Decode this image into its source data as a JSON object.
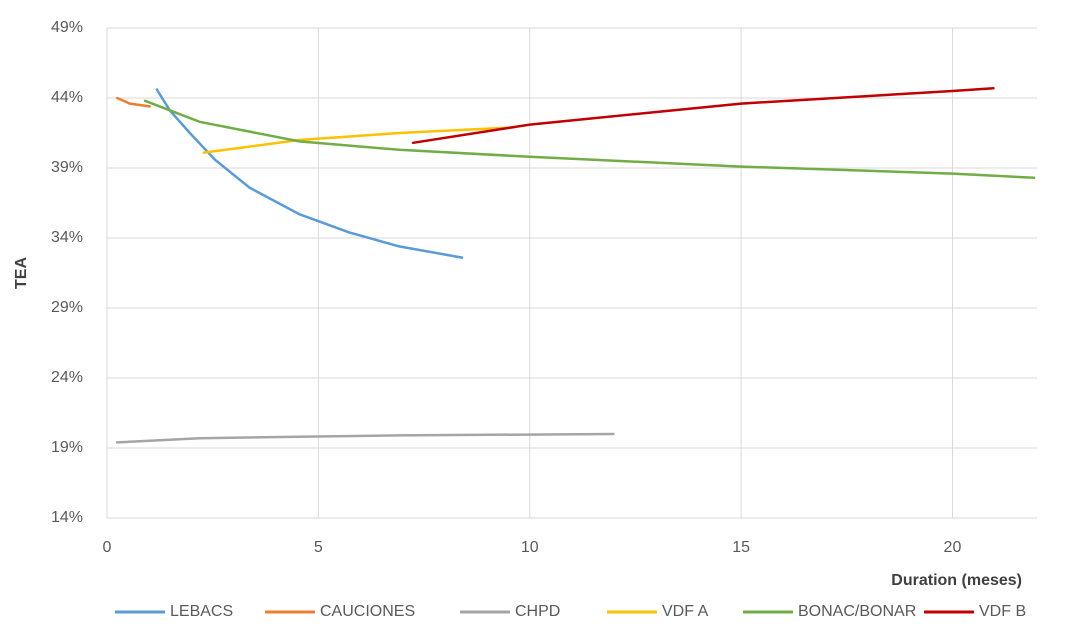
{
  "chart_data": {
    "type": "line",
    "x_label": "Duration (meses)",
    "y_label": "TEA",
    "xlim": [
      0,
      22
    ],
    "xticks": [
      0,
      5,
      10,
      15,
      20
    ],
    "ylim": [
      14,
      49
    ],
    "yticks": [
      {
        "value": 14,
        "label": "14%"
      },
      {
        "value": 19,
        "label": "19%"
      },
      {
        "value": 24,
        "label": "24%"
      },
      {
        "value": 29,
        "label": "29%"
      },
      {
        "value": 34,
        "label": "34%"
      },
      {
        "value": 39,
        "label": "39%"
      },
      {
        "value": 44,
        "label": "44%"
      },
      {
        "value": 49,
        "label": "49%"
      }
    ],
    "grid": true,
    "legend": "bottom",
    "series": [
      {
        "name": "LEBACS",
        "color": "#5b9bd5",
        "x": [
          1.18,
          1.49,
          1.96,
          2.55,
          3.37,
          4.55,
          5.73,
          6.91,
          8.4
        ],
        "values": [
          44.6,
          43.1,
          41.5,
          39.6,
          37.6,
          35.7,
          34.4,
          33.4,
          32.6
        ]
      },
      {
        "name": "CAUCIONES",
        "color": "#ed7d31",
        "x": [
          0.24,
          0.54,
          1.01
        ],
        "values": [
          44.0,
          43.6,
          43.4
        ]
      },
      {
        "name": "CHPD",
        "color": "#a5a5a5",
        "x": [
          0.24,
          2.19,
          6.91,
          11.98
        ],
        "values": [
          19.4,
          19.7,
          19.9,
          20.0
        ]
      },
      {
        "name": "VDF A",
        "color": "#ffc000",
        "x": [
          2.29,
          4.55,
          6.91,
          9.62
        ],
        "values": [
          40.1,
          41.0,
          41.5,
          41.9
        ]
      },
      {
        "name": "BONAC/BONAR",
        "color": "#70ad47",
        "x": [
          0.9,
          2.19,
          4.55,
          6.91,
          10,
          15,
          20,
          21.93
        ],
        "values": [
          43.8,
          42.3,
          40.9,
          40.3,
          39.8,
          39.1,
          38.6,
          38.3
        ]
      },
      {
        "name": "VDF B",
        "color": "#c00000",
        "x": [
          7.24,
          10,
          15,
          20,
          20.97
        ],
        "values": [
          40.8,
          42.1,
          43.6,
          44.5,
          44.7
        ]
      }
    ]
  }
}
